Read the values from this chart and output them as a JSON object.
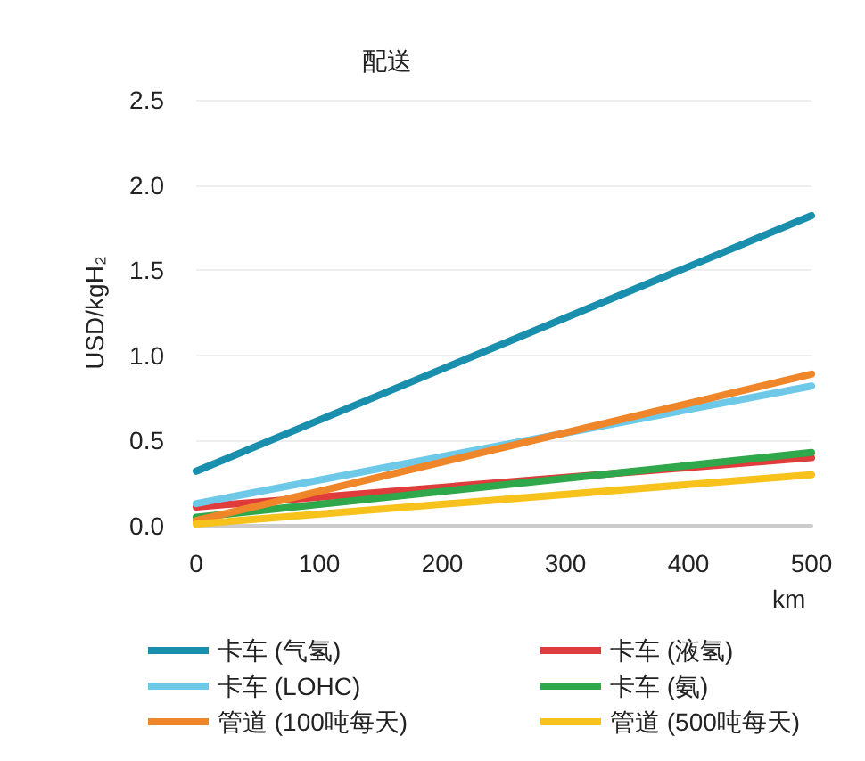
{
  "chart_data": {
    "type": "line",
    "title": "配送",
    "xlabel": "km",
    "ylabel": "USD/kgH₂",
    "x": [
      0,
      500
    ],
    "xlim": [
      0,
      500
    ],
    "xticks": [
      0,
      100,
      200,
      300,
      400,
      500
    ],
    "ylim": [
      0,
      2.5
    ],
    "yticks": [
      {
        "value": 0,
        "label": "0.0"
      },
      0.5,
      {
        "value": 1,
        "label": "1.0"
      },
      1.5,
      {
        "value": 2,
        "label": "2.0"
      },
      2.5
    ],
    "grid": "y",
    "legend": "bottom",
    "marker": "none",
    "series": [
      {
        "name": "卡车 (气氢)",
        "color": "#1a8fad",
        "values": [
          0.32,
          1.82
        ]
      },
      {
        "name": "卡车 (液氢)",
        "color": "#e03c3c",
        "values": [
          0.11,
          0.4
        ]
      },
      {
        "name": "卡车 (LOHC)",
        "color": "#6ec9e8",
        "values": [
          0.13,
          0.82
        ]
      },
      {
        "name": "卡车 (氨)",
        "color": "#2ea84a",
        "values": [
          0.05,
          0.43
        ]
      },
      {
        "name": "管道 (100吨每天)",
        "color": "#f0862a",
        "values": [
          0.03,
          0.89
        ]
      },
      {
        "name": "管道 (500吨每天)",
        "color": "#f7c21b",
        "values": [
          0.01,
          0.3
        ]
      }
    ]
  }
}
